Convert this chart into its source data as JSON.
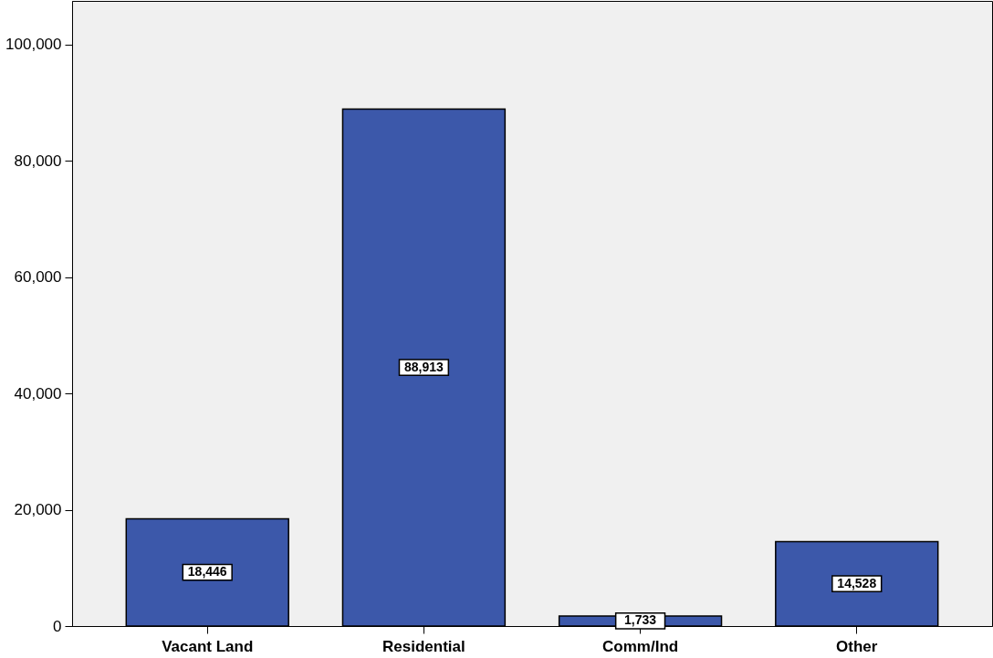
{
  "chart_data": {
    "type": "bar",
    "categories": [
      "Vacant Land",
      "Residential",
      "Comm/Ind",
      "Other"
    ],
    "values": [
      18446,
      88913,
      1733,
      14528
    ],
    "value_labels": [
      "18,446",
      "88,913",
      "1,733",
      "14,528"
    ],
    "color": "#3c58aa",
    "ylim": [
      0,
      107500
    ],
    "yticks": [
      0,
      {
        "value": 20000,
        "label": "20,000"
      },
      {
        "value": 40000,
        "label": "40,000"
      },
      {
        "value": 60000,
        "label": "60,000"
      },
      {
        "value": 80000,
        "label": "80,000"
      },
      {
        "value": 100000,
        "label": "100,000"
      }
    ],
    "grid": false
  }
}
